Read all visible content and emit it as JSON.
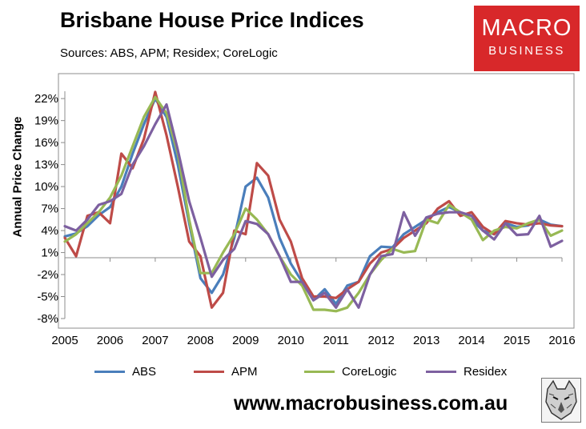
{
  "header": {
    "title": "Brisbane House Price Indices",
    "subtitle": "Sources: ABS, APM; Residex; CoreLogic"
  },
  "logo": {
    "line1": "MACRO",
    "line2": "BUSINESS",
    "color": "#d8282a"
  },
  "footer": {
    "url": "www.macrobusiness.com.au"
  },
  "chart_data": {
    "type": "line",
    "title": "Brisbane House Price Indices",
    "subtitle": "Sources: ABS, APM; Residex; CoreLogic",
    "xlabel": "",
    "ylabel": "Annual Price Change",
    "xlim": [
      2005,
      2016
    ],
    "ylim": [
      -8,
      23
    ],
    "y_ticks": [
      "-8%",
      "-5%",
      "-2%",
      "1%",
      "4%",
      "7%",
      "10%",
      "13%",
      "16%",
      "19%",
      "22%"
    ],
    "y_tick_values": [
      -8,
      -5,
      -2,
      1,
      4,
      7,
      10,
      13,
      16,
      19,
      22
    ],
    "x_ticks": [
      "2005",
      "2006",
      "2007",
      "2008",
      "2009",
      "2010",
      "2011",
      "2012",
      "2013",
      "2014",
      "2015",
      "2016"
    ],
    "x_tick_values": [
      2005,
      2006,
      2007,
      2008,
      2009,
      2010,
      2011,
      2012,
      2013,
      2014,
      2015,
      2016
    ],
    "grid": false,
    "legend_position": "bottom",
    "series": [
      {
        "name": "ABS",
        "color": "#4a7ebb",
        "x": [
          2005,
          2005.25,
          2005.5,
          2005.75,
          2006,
          2006.25,
          2006.5,
          2006.75,
          2007,
          2007.25,
          2007.5,
          2007.75,
          2008,
          2008.25,
          2008.5,
          2008.75,
          2009,
          2009.25,
          2009.5,
          2009.75,
          2010,
          2010.25,
          2010.5,
          2010.75,
          2011,
          2011.25,
          2011.5,
          2011.75,
          2012,
          2012.25,
          2012.5,
          2012.75,
          2013,
          2013.25,
          2013.5,
          2013.75,
          2014,
          2014.25,
          2014.5,
          2014.75,
          2015,
          2015.25,
          2015.5,
          2015.75,
          2016
        ],
        "values": [
          3.2,
          3.6,
          4.6,
          6.1,
          7.2,
          10.0,
          14.5,
          18.5,
          22.0,
          19.5,
          13.0,
          5.0,
          -2.5,
          -4.5,
          -2.0,
          3.0,
          10.0,
          11.2,
          8.5,
          3.0,
          -0.5,
          -3.0,
          -5.5,
          -4.0,
          -6.0,
          -3.5,
          -3.0,
          0.5,
          1.8,
          1.7,
          3.5,
          4.5,
          5.5,
          6.5,
          7.2,
          6.5,
          5.5,
          4.0,
          3.5,
          5.0,
          4.5,
          4.7,
          5.5,
          4.8,
          4.6
        ]
      },
      {
        "name": "APM",
        "color": "#be4b48",
        "x": [
          2005,
          2005.25,
          2005.5,
          2005.75,
          2006,
          2006.25,
          2006.5,
          2006.75,
          2007,
          2007.25,
          2007.5,
          2007.75,
          2008,
          2008.25,
          2008.5,
          2008.75,
          2009,
          2009.25,
          2009.5,
          2009.75,
          2010,
          2010.25,
          2010.5,
          2010.75,
          2011,
          2011.25,
          2011.5,
          2011.75,
          2012,
          2012.25,
          2012.5,
          2012.75,
          2013,
          2013.25,
          2013.5,
          2013.75,
          2014,
          2014.25,
          2014.5,
          2014.75,
          2015,
          2015.25,
          2015.5,
          2015.75,
          2016
        ],
        "values": [
          3.0,
          0.5,
          6.0,
          6.5,
          5.0,
          14.5,
          12.5,
          16.5,
          22.9,
          17.0,
          10.0,
          2.5,
          0.5,
          -6.5,
          -4.5,
          4.0,
          3.5,
          13.2,
          11.5,
          5.5,
          2.5,
          -2.5,
          -5.0,
          -5.0,
          -5.2,
          -4.0,
          -3.0,
          -0.5,
          1.0,
          1.5,
          3.0,
          4.0,
          5.0,
          7.0,
          8.0,
          6.0,
          6.5,
          4.5,
          3.5,
          5.3,
          5.0,
          4.8,
          5.0,
          4.7,
          4.6
        ]
      },
      {
        "name": "CoreLogic",
        "color": "#98b954",
        "x": [
          2005,
          2005.25,
          2005.5,
          2005.75,
          2006,
          2006.25,
          2006.5,
          2006.75,
          2007,
          2007.25,
          2007.5,
          2007.75,
          2008,
          2008.25,
          2008.5,
          2008.75,
          2009,
          2009.25,
          2009.5,
          2009.75,
          2010,
          2010.25,
          2010.5,
          2010.75,
          2011,
          2011.25,
          2011.5,
          2011.75,
          2012,
          2012.25,
          2012.5,
          2012.75,
          2013,
          2013.25,
          2013.5,
          2013.75,
          2014,
          2014.25,
          2014.5,
          2014.75,
          2015,
          2015.25,
          2015.5,
          2015.75,
          2016
        ],
        "values": [
          2.5,
          3.5,
          5.0,
          6.5,
          8.5,
          11.5,
          15.5,
          19.5,
          22.2,
          20.0,
          14.5,
          5.5,
          -1.8,
          -1.8,
          1.0,
          3.5,
          7.0,
          5.5,
          3.5,
          0.5,
          -2.0,
          -3.5,
          -6.8,
          -6.8,
          -7.0,
          -6.5,
          -4.5,
          -2.0,
          0.0,
          1.5,
          1.0,
          1.2,
          5.5,
          5.0,
          7.5,
          6.5,
          5.5,
          2.7,
          4.0,
          4.5,
          4.3,
          5.0,
          5.5,
          3.3,
          4.0
        ]
      },
      {
        "name": "Residex",
        "color": "#7d60a0",
        "x": [
          2005,
          2005.25,
          2005.5,
          2005.75,
          2006,
          2006.25,
          2006.5,
          2006.75,
          2007,
          2007.25,
          2007.5,
          2007.75,
          2008,
          2008.25,
          2008.5,
          2008.75,
          2009,
          2009.25,
          2009.5,
          2009.75,
          2010,
          2010.25,
          2010.5,
          2010.75,
          2011,
          2011.25,
          2011.5,
          2011.75,
          2012,
          2012.25,
          2012.5,
          2012.75,
          2013,
          2013.25,
          2013.5,
          2013.75,
          2014,
          2014.25,
          2014.5,
          2014.75,
          2015,
          2015.25,
          2015.5,
          2015.75,
          2016
        ],
        "values": [
          4.6,
          4.0,
          5.5,
          7.5,
          8.0,
          9.0,
          13.0,
          15.5,
          18.5,
          21.2,
          15.0,
          8.0,
          3.0,
          -2.3,
          0.0,
          1.5,
          5.3,
          4.9,
          3.5,
          0.5,
          -3.0,
          -3.0,
          -5.5,
          -4.5,
          -6.5,
          -4.0,
          -6.5,
          -2.0,
          0.5,
          0.8,
          6.5,
          3.3,
          5.8,
          6.3,
          6.5,
          6.5,
          6.0,
          4.0,
          2.8,
          5.0,
          3.4,
          3.5,
          6.0,
          1.8,
          2.6
        ]
      }
    ]
  }
}
